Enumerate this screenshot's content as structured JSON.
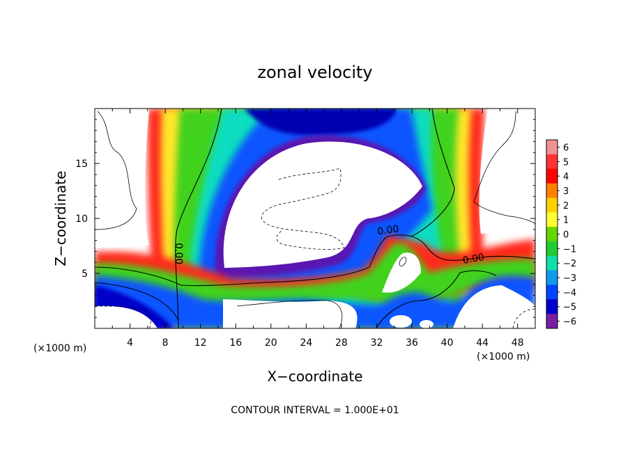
{
  "chart_data": {
    "type": "heatmap",
    "title": "zonal velocity",
    "xlabel": "X−coordinate",
    "ylabel": "Z−coordinate",
    "x_unit_left": "(×1000 m)",
    "x_unit_right": "(×1000 m)",
    "footer": "CONTOUR INTERVAL = 1.000E+01",
    "xlim": [
      0,
      50
    ],
    "ylim": [
      0,
      20
    ],
    "x_ticks": [
      4,
      8,
      12,
      16,
      20,
      24,
      28,
      32,
      36,
      40,
      44,
      48
    ],
    "y_ticks": [
      5,
      10,
      15
    ],
    "colorbar_levels": [
      6,
      5,
      4,
      3,
      2,
      1,
      0,
      -1,
      -2,
      -3,
      -4,
      -5,
      -6
    ],
    "colorbar_labels": [
      "6",
      "5",
      "4",
      "3",
      "2",
      "1",
      "0",
      "−1",
      "−2",
      "−3",
      "−4",
      "−5",
      "−6"
    ],
    "colorbar_colors": [
      "#f29191",
      "#ff3333",
      "#ff0000",
      "#ff8000",
      "#ffd200",
      "#ffff33",
      "#64d700",
      "#22cc33",
      "#11ddaa",
      "#1199ee",
      "#0044ff",
      "#0000cc",
      "#7a1fa2"
    ],
    "contour_labels": [
      {
        "text": "0.00",
        "x": 9.5,
        "y": 6.8,
        "rotate": 90
      },
      {
        "text": "0.00",
        "x": 33.3,
        "y": 8.9,
        "rotate": -8
      },
      {
        "text": "0.00",
        "x": 43.0,
        "y": 6.3,
        "rotate": -10
      }
    ]
  }
}
